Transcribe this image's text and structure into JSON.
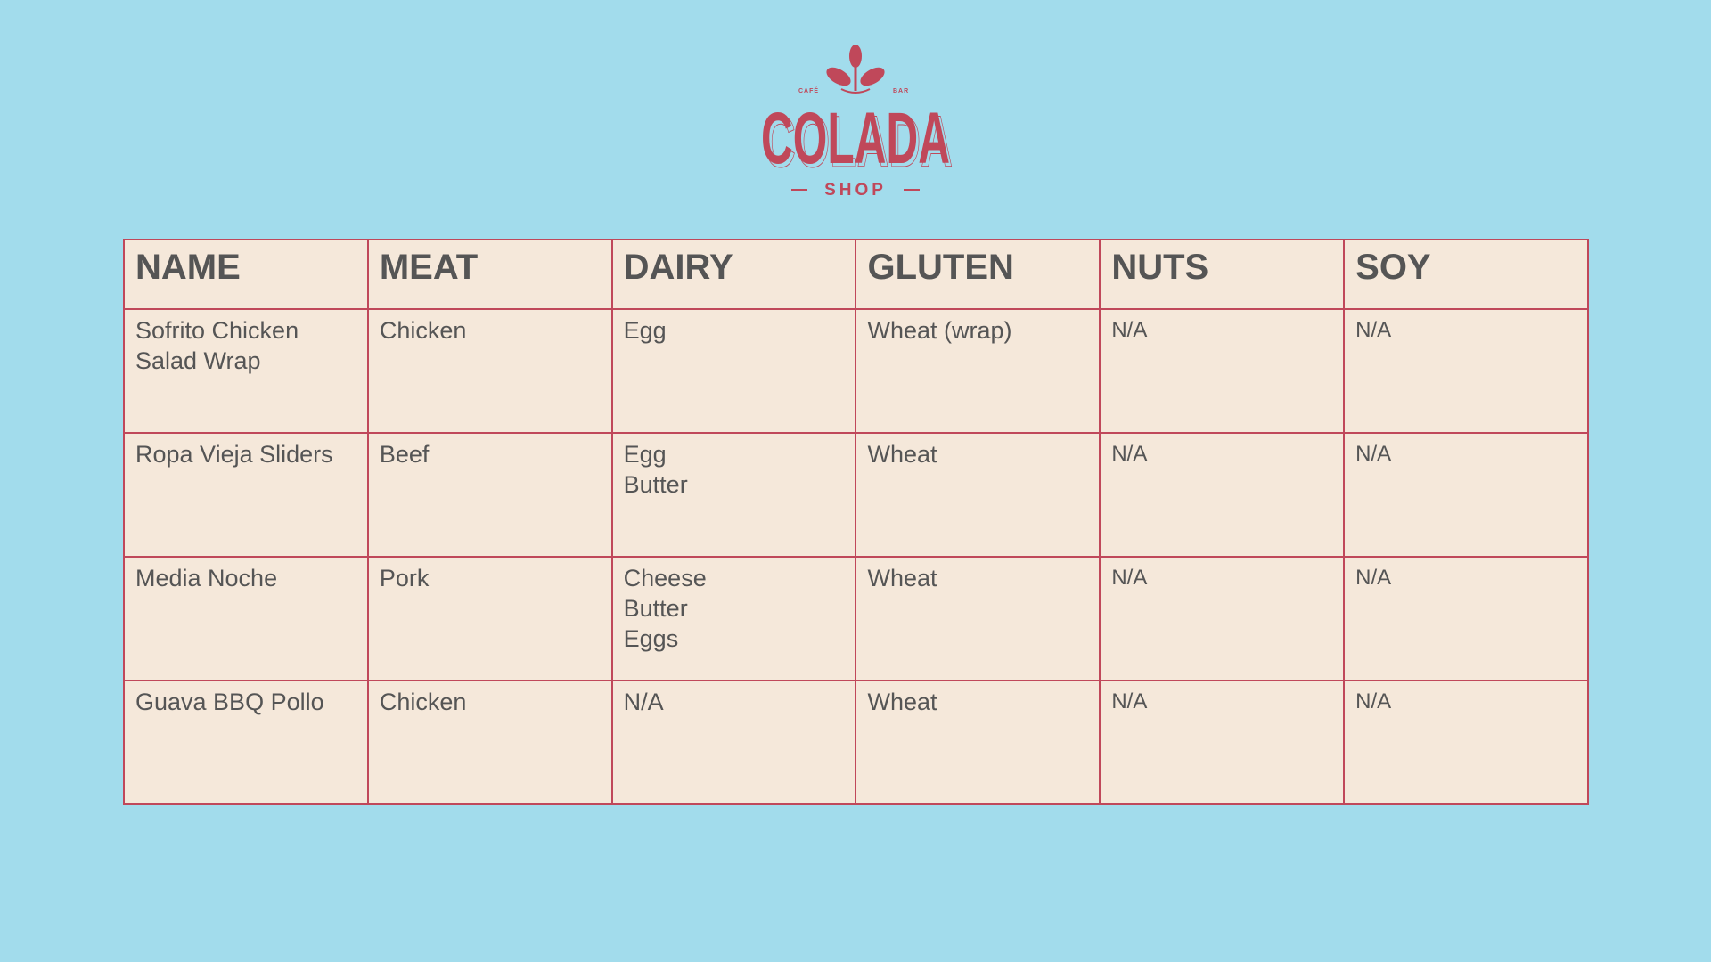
{
  "logo": {
    "name": "COLADA",
    "sub": "SHOP",
    "left_tag": "CAFÉ",
    "right_tag": "BAR",
    "color": "#c0485a"
  },
  "colors": {
    "background": "#a2dcec",
    "table_fill": "#f5e8da",
    "border": "#c0485a",
    "text": "#555555"
  },
  "table": {
    "headers": [
      "NAME",
      "MEAT",
      "DAIRY",
      "GLUTEN",
      "NUTS",
      "SOY"
    ],
    "rows": [
      {
        "name": [
          "Sofrito Chicken",
          "Salad Wrap"
        ],
        "meat": "Chicken",
        "dairy": [
          "Egg"
        ],
        "gluten": "Wheat (wrap)",
        "nuts": "N/A",
        "soy": "N/A"
      },
      {
        "name": [
          "Ropa Vieja Sliders"
        ],
        "meat": "Beef",
        "dairy": [
          "Egg",
          "Butter"
        ],
        "gluten": "Wheat",
        "nuts": "N/A",
        "soy": "N/A"
      },
      {
        "name": [
          "Media Noche"
        ],
        "meat": "Pork",
        "dairy": [
          "Cheese",
          "Butter",
          "Eggs"
        ],
        "gluten": "Wheat",
        "nuts": "N/A",
        "soy": "N/A"
      },
      {
        "name": [
          "Guava BBQ Pollo"
        ],
        "meat": "Chicken",
        "dairy": [
          "N/A"
        ],
        "gluten": "Wheat",
        "nuts": "N/A",
        "soy": "N/A"
      }
    ]
  }
}
